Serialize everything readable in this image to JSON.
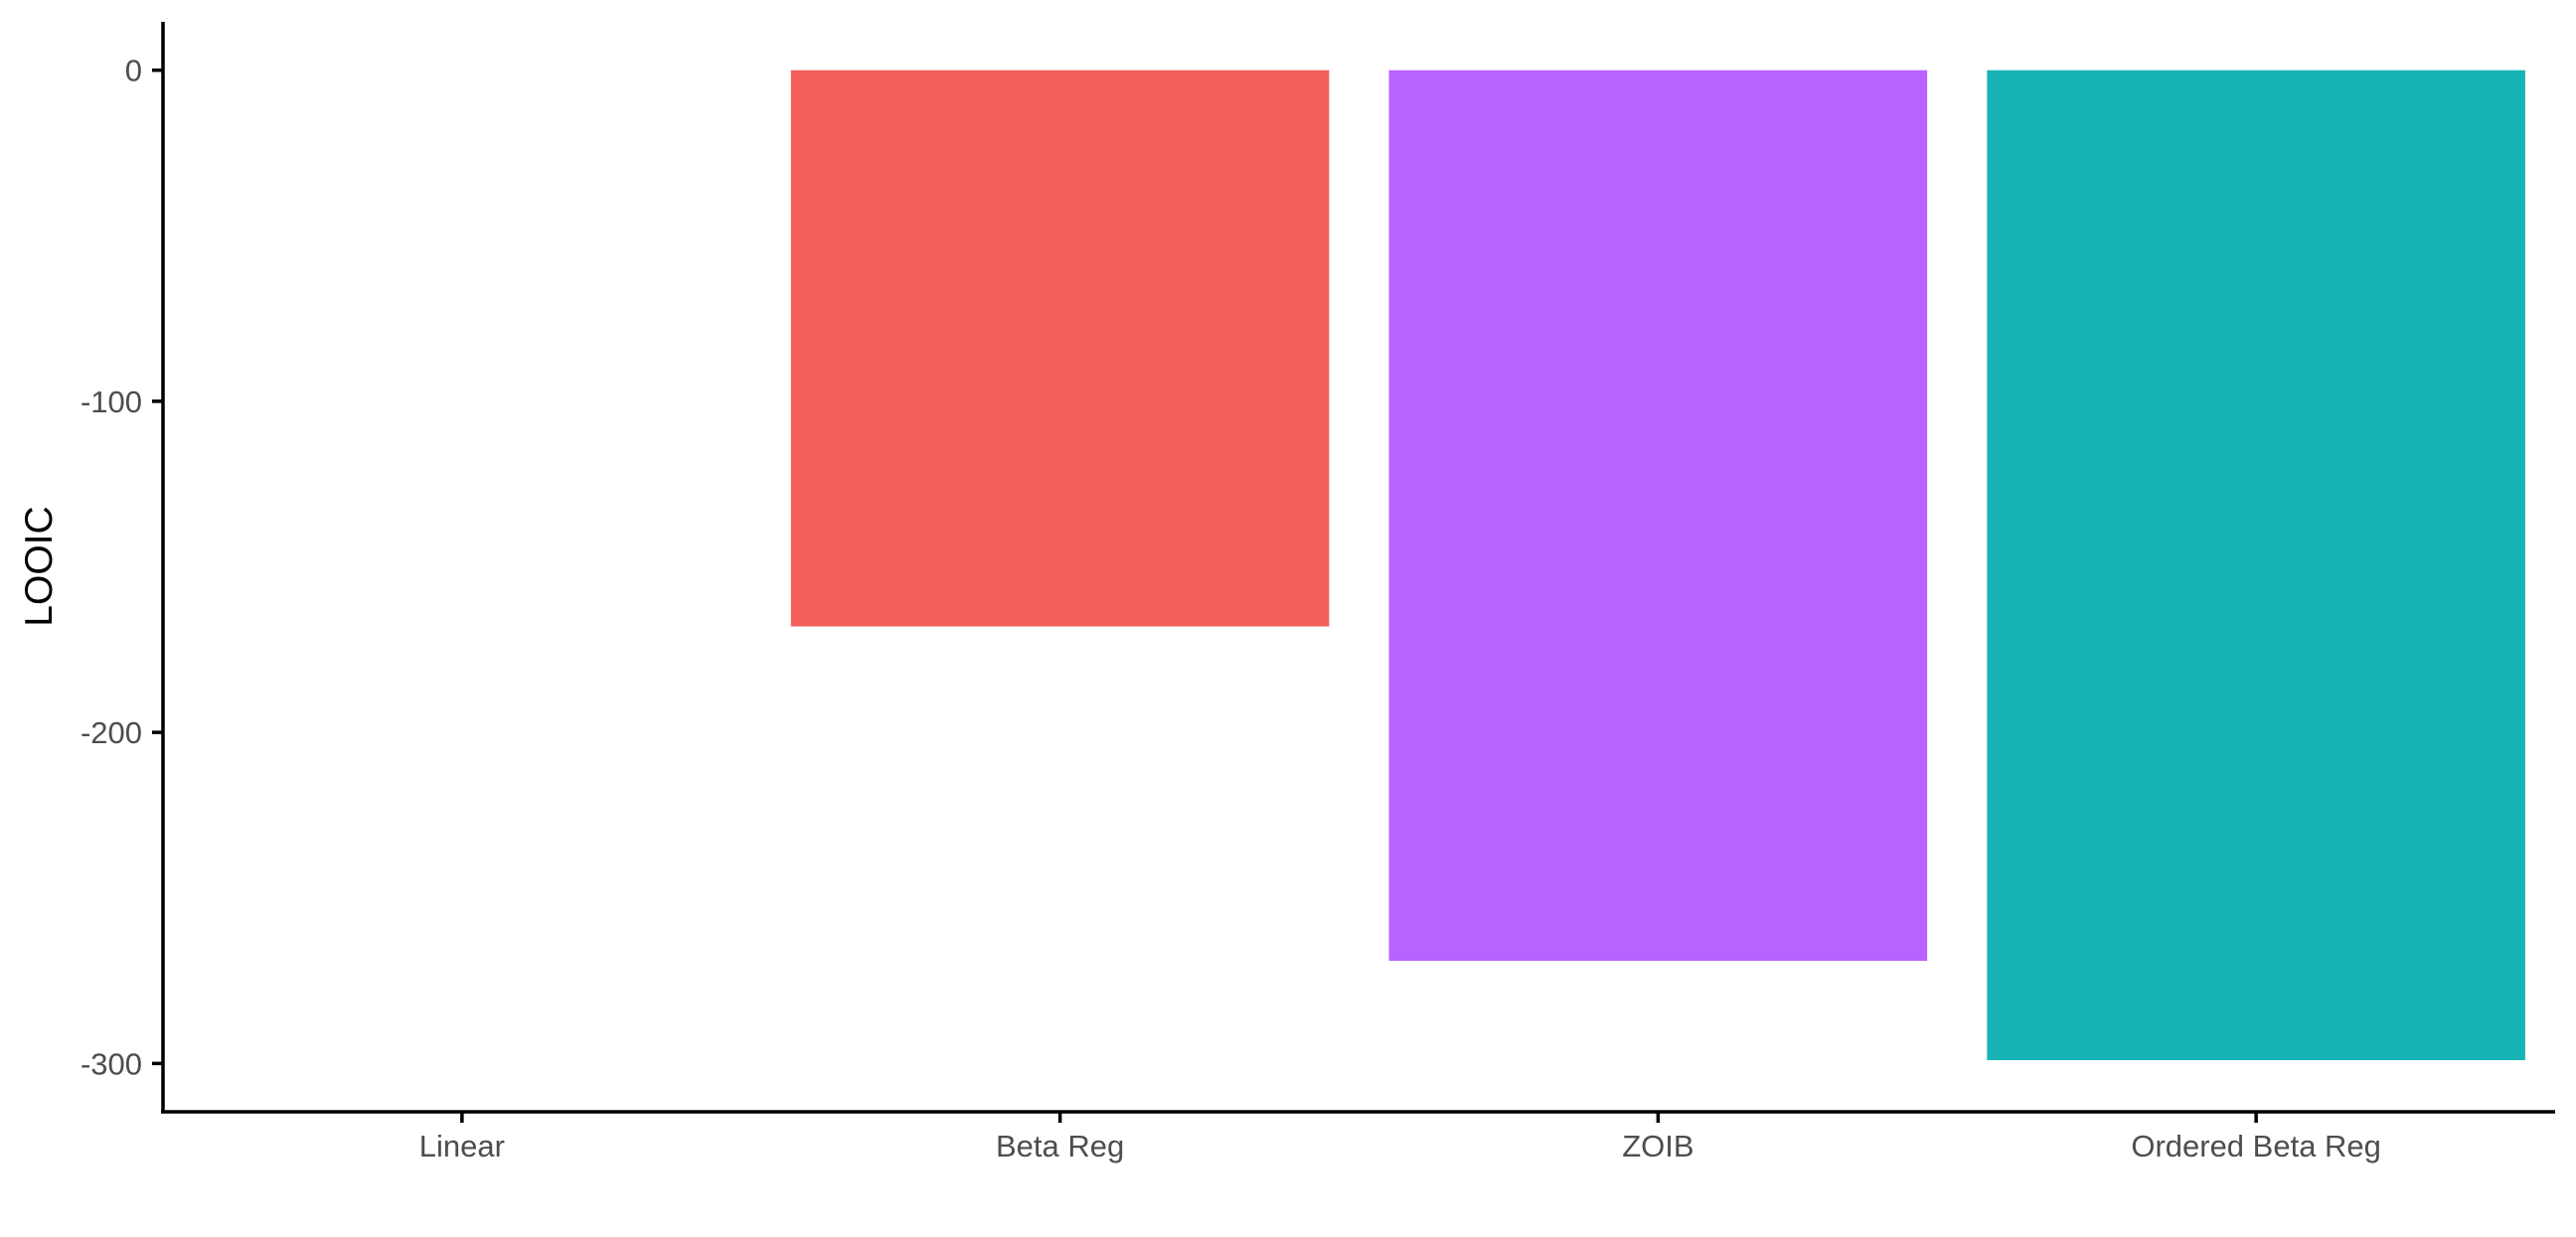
{
  "chart_data": {
    "type": "bar",
    "title": "",
    "xlabel": "",
    "ylabel": "LOOIC",
    "categories": [
      "Linear",
      "Beta Reg",
      "ZOIB",
      "Ordered Beta Reg"
    ],
    "values": [
      0,
      -168,
      -269,
      -299
    ],
    "colors": [
      "#F8766D",
      "#F25F5C",
      "#B862FF",
      "#18B3B7"
    ],
    "yticks": [
      0,
      -100,
      -200,
      -300
    ],
    "ytick_labels": [
      "0",
      "-100",
      "-200",
      "-300"
    ],
    "ylim": [
      -314.6,
      14.6
    ],
    "grid": false,
    "legend": "none"
  }
}
